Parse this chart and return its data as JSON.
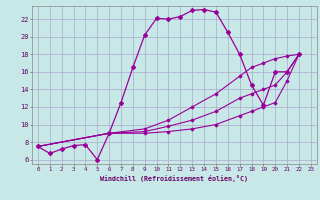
{
  "xlabel": "Windchill (Refroidissement éolien,°C)",
  "bg_color": "#c8e8e8",
  "grid_color": "#aaaacc",
  "line_color": "#990099",
  "xlim": [
    -0.5,
    23.5
  ],
  "ylim": [
    5.5,
    23.5
  ],
  "yticks": [
    6,
    8,
    10,
    12,
    14,
    16,
    18,
    20,
    22
  ],
  "xticks": [
    0,
    1,
    2,
    3,
    4,
    5,
    6,
    7,
    8,
    9,
    10,
    11,
    12,
    13,
    14,
    15,
    16,
    17,
    18,
    19,
    20,
    21,
    22,
    23
  ],
  "line1_x": [
    0,
    1,
    2,
    3,
    4,
    5,
    6,
    7,
    8,
    9,
    10,
    11,
    12,
    13,
    14,
    15,
    16,
    17,
    18,
    19,
    20,
    21,
    22
  ],
  "line1_y": [
    7.5,
    6.7,
    7.2,
    7.6,
    7.7,
    6.0,
    9.0,
    12.5,
    16.5,
    20.2,
    22.1,
    22.0,
    22.3,
    23.0,
    23.1,
    22.8,
    20.5,
    18.0,
    14.5,
    12.2,
    16.0,
    16.0,
    18.0
  ],
  "line2_x": [
    0,
    6,
    9,
    11,
    13,
    15,
    17,
    18,
    19,
    20,
    21,
    22
  ],
  "line2_y": [
    7.5,
    9.0,
    9.0,
    9.2,
    9.5,
    10.0,
    11.0,
    11.5,
    12.0,
    12.5,
    15.0,
    18.0
  ],
  "line3_x": [
    0,
    6,
    9,
    11,
    13,
    15,
    17,
    18,
    19,
    20,
    21,
    22
  ],
  "line3_y": [
    7.5,
    9.0,
    9.2,
    9.8,
    10.5,
    11.5,
    13.0,
    13.5,
    14.0,
    14.5,
    16.0,
    18.0
  ],
  "line4_x": [
    0,
    6,
    9,
    11,
    13,
    15,
    17,
    18,
    19,
    20,
    21,
    22
  ],
  "line4_y": [
    7.5,
    9.0,
    9.5,
    10.5,
    12.0,
    13.5,
    15.5,
    16.5,
    17.0,
    17.5,
    17.8,
    18.0
  ]
}
